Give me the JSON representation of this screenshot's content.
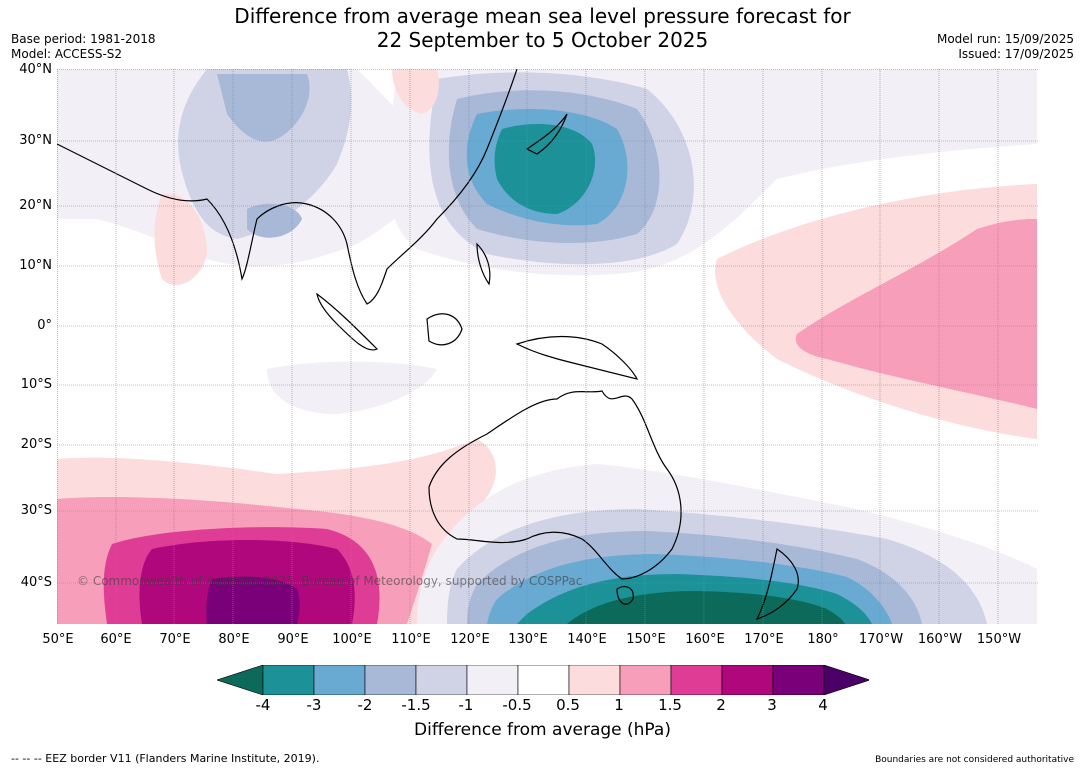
{
  "title_line1": "Difference from average mean sea level pressure forecast for",
  "title_line2": "22 September to 5 October 2025",
  "base_period": "Base period: 1981-2018",
  "model": "Model: ACCESS-S2",
  "model_run": "Model run: 15/09/2025",
  "issued": "Issued: 17/09/2025",
  "lat_labels": [
    "40°N",
    "30°N",
    "20°N",
    "10°N",
    "0°",
    "10°S",
    "20°S",
    "30°S",
    "40°S"
  ],
  "lon_labels": [
    "50°E",
    "60°E",
    "70°E",
    "80°E",
    "90°E",
    "100°E",
    "110°E",
    "120°E",
    "130°E",
    "140°E",
    "150°E",
    "160°E",
    "170°E",
    "180°",
    "170°W",
    "160°W",
    "150°W"
  ],
  "copyright": "© Commonwealth of Australia 2025, Bureau of Meteorology, supported by COSPPac",
  "colorbar": {
    "ticks": [
      "-4",
      "-3",
      "-2",
      "-1.5",
      "-1",
      "-0.5",
      "0.5",
      "1",
      "1.5",
      "2",
      "3",
      "4"
    ],
    "colors": [
      "#0b6a5a",
      "#1d9198",
      "#68aad2",
      "#a8b9d8",
      "#d0d2e6",
      "#f2eff6",
      "#ffffff",
      "#fcdcdc",
      "#f79fba",
      "#df3c95",
      "#b0087c",
      "#7a0079",
      "#4b0068"
    ],
    "label": "Difference from average (hPa)"
  },
  "footer_left": "--  --  -- EEZ border V11 (Flanders Marine Institute, 2019).",
  "footer_right": "Boundaries are not considered authoritative"
}
